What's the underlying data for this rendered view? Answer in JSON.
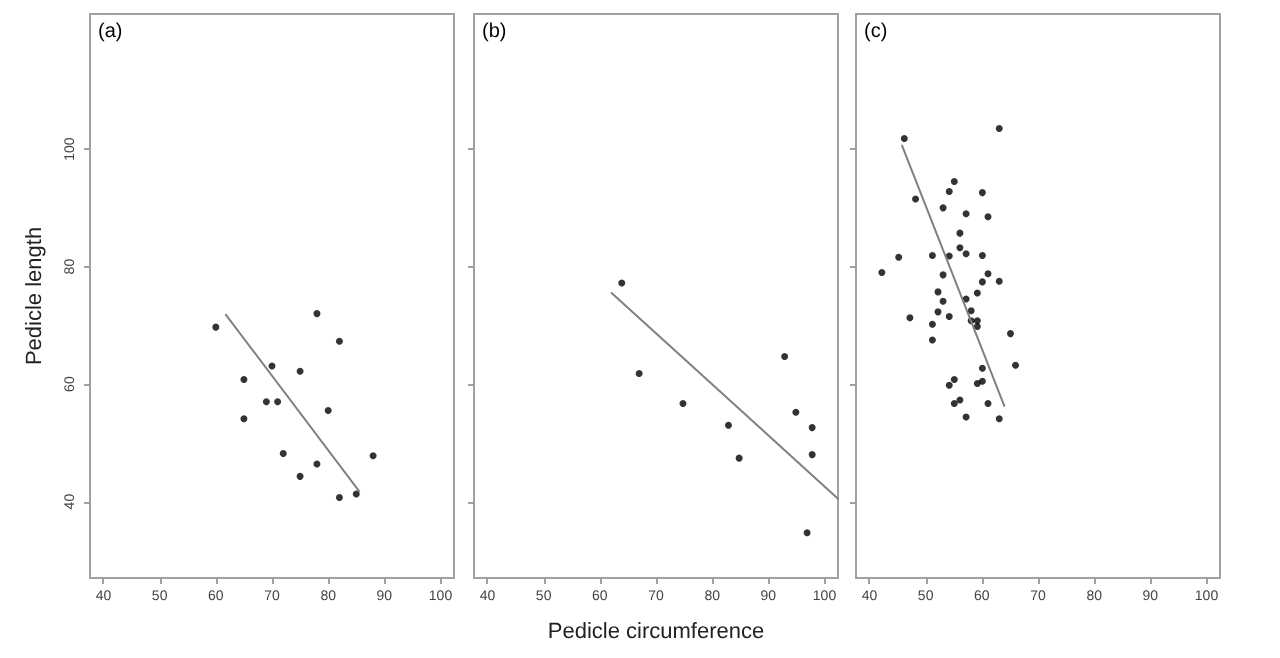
{
  "chart_data": [
    {
      "type": "scatter",
      "ylabel": "Pedicle length",
      "annotations": [
        "(a)"
      ],
      "xlim": [
        37.6,
        102.4
      ],
      "ylim": [
        27,
        123
      ],
      "xticks": [
        40,
        50,
        60,
        70,
        80,
        90,
        100
      ],
      "yticks": [
        40,
        60,
        80,
        100
      ],
      "grid": false,
      "marker": "circle",
      "series": [
        {
          "color": "#000000",
          "x": [
            60,
            65,
            65,
            70,
            69,
            71,
            75,
            78,
            82,
            80,
            72,
            75,
            78,
            82,
            85,
            88
          ],
          "values": [
            69.7,
            60.8,
            54.1,
            63.1,
            57,
            57,
            62.2,
            72,
            67.3,
            55.5,
            48.2,
            44.3,
            46.4,
            40.7,
            41.3,
            47.8
          ]
        },
        {
          "type": "line",
          "color": "#808080",
          "line_style": "solid",
          "marker": "none",
          "x": [
            61.8,
            85.5
          ],
          "values": [
            71.8,
            41.8
          ]
        }
      ]
    },
    {
      "type": "scatter",
      "xlabel": "Pedicle circumference",
      "annotations": [
        "(b)"
      ],
      "xlim": [
        37.6,
        102.4
      ],
      "ylim": [
        27,
        123
      ],
      "xticks": [
        40,
        50,
        60,
        70,
        80,
        90,
        100
      ],
      "yticks": [
        40,
        60,
        80,
        100
      ],
      "tick_labels": "x",
      "grid": false,
      "marker": "circle",
      "series": [
        {
          "color": "#000000",
          "x": [
            63.9,
            67,
            74.8,
            82.9,
            84.8,
            92.9,
            94.9,
            97.8,
            97.8,
            96.9
          ],
          "values": [
            77.2,
            61.8,
            56.7,
            53,
            47.4,
            64.7,
            55.2,
            52.6,
            48,
            34.7
          ]
        },
        {
          "type": "line",
          "color": "#808080",
          "line_style": "solid",
          "marker": "none",
          "x": [
            62.1,
            102.4
          ],
          "values": [
            75.5,
            40.5
          ]
        }
      ]
    },
    {
      "type": "scatter",
      "annotations": [
        "(c)"
      ],
      "xlim": [
        37.6,
        102.4
      ],
      "ylim": [
        27,
        123
      ],
      "xticks": [
        40,
        50,
        60,
        70,
        80,
        90,
        100
      ],
      "yticks": [
        40,
        60,
        80,
        100
      ],
      "tick_labels": "x",
      "grid": false,
      "marker": "circle",
      "series": [
        {
          "color": "#000000",
          "x": [
            46.2,
            63.1,
            55.1,
            54.2,
            60.1,
            48.2,
            53.1,
            57.2,
            61.1,
            56.1,
            56.1,
            51.2,
            54.2,
            57.2,
            60.1,
            45.2,
            42.2,
            53.1,
            61.1,
            60.1,
            63.1,
            52.2,
            59.2,
            57.2,
            53.1,
            52.2,
            58.1,
            47.2,
            54.2,
            51.2,
            58.1,
            59.2,
            59.2,
            65.1,
            51.2,
            66,
            60.1,
            55.1,
            60.1,
            54.2,
            59.2,
            56.1,
            55.1,
            61.1,
            57.2,
            63.1
          ],
          "values": [
            101.8,
            103.5,
            94.5,
            92.8,
            92.6,
            91.5,
            90,
            89,
            88.5,
            85.7,
            83.2,
            81.9,
            81.8,
            82.2,
            81.9,
            81.6,
            79,
            78.6,
            78.8,
            77.4,
            77.5,
            75.7,
            75.5,
            74.5,
            74.1,
            72.3,
            72.5,
            71.3,
            71.5,
            70.2,
            70.8,
            70.8,
            69.8,
            68.6,
            67.5,
            63.2,
            62.7,
            60.8,
            60.5,
            59.8,
            60.1,
            57.3,
            56.7,
            56.7,
            54.4,
            54.1
          ]
        },
        {
          "type": "line",
          "color": "#808080",
          "line_style": "solid",
          "marker": "none",
          "x": [
            45.8,
            64
          ],
          "values": [
            100.6,
            56.3
          ]
        }
      ]
    }
  ]
}
